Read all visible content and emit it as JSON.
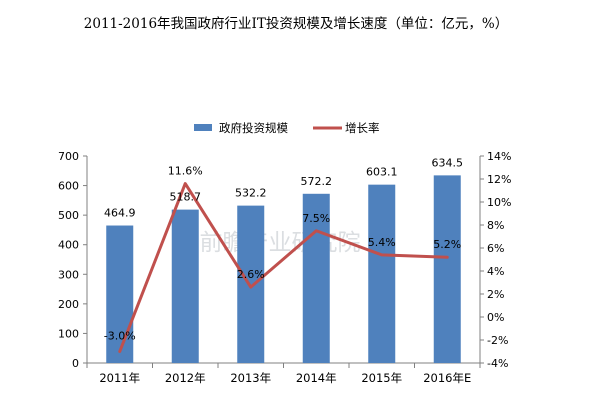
{
  "chart_data": {
    "type": "bar",
    "title": "2011-2016年我国政府行业IT投资规模及增长速度（单位：亿元，%）",
    "categories": [
      "2011年",
      "2012年",
      "2013年",
      "2014年",
      "2015年",
      "2016年E"
    ],
    "series": [
      {
        "name": "政府投资规模",
        "type": "bar",
        "axis": "left",
        "values": [
          464.9,
          518.7,
          532.2,
          572.2,
          603.1,
          634.5
        ],
        "labels": [
          "464.9",
          "518.7",
          "532.2",
          "572.2",
          "603.1",
          "634.5"
        ],
        "color": "#4f81bd"
      },
      {
        "name": "增长率",
        "type": "line",
        "axis": "right",
        "values": [
          -3.0,
          11.6,
          2.6,
          7.5,
          5.4,
          5.2
        ],
        "labels": [
          "-3.0%",
          "11.6%",
          "2.6%",
          "7.5%",
          "5.4%",
          "5.2%"
        ],
        "color": "#c0504d"
      }
    ],
    "y_left": {
      "ylim": [
        0,
        700
      ],
      "ticks": [
        "0",
        "100",
        "200",
        "300",
        "400",
        "500",
        "600",
        "700"
      ]
    },
    "y_right": {
      "ylim": [
        -4,
        14
      ],
      "ticks": [
        "-4%",
        "-2%",
        "0%",
        "2%",
        "4%",
        "6%",
        "8%",
        "10%",
        "12%",
        "14%"
      ]
    },
    "grid": false,
    "legend": "top-center",
    "watermark": "前瞻产业研究院"
  }
}
